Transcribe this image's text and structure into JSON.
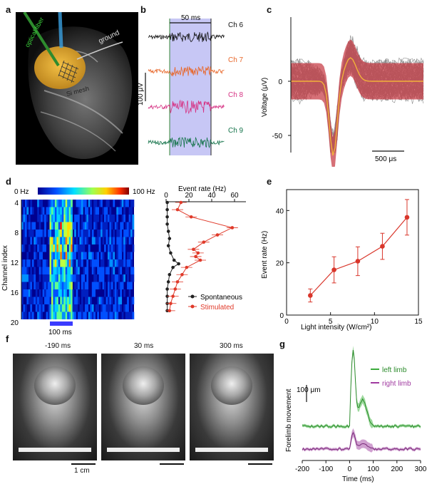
{
  "panels": {
    "a": {
      "letter": "a",
      "labels": [
        "optical fiber",
        "ground",
        "Si mesh"
      ]
    },
    "b": {
      "letter": "b",
      "scalebar_time": "50 ms",
      "scalebar_amp": "100 μV",
      "channels": [
        {
          "name": "Ch 6",
          "color": "#111111"
        },
        {
          "name": "Ch 7",
          "color": "#e8672a"
        },
        {
          "name": "Ch 8",
          "color": "#d63384"
        },
        {
          "name": "Ch 9",
          "color": "#14734a"
        }
      ],
      "stim_color": "#b9b9f2"
    },
    "c": {
      "letter": "c",
      "ylabel": "Voltage (μV)",
      "yticks": [
        "0",
        "-50"
      ],
      "scalebar_time": "500 μs"
    },
    "d": {
      "letter": "d",
      "colorbar_min": "0 Hz",
      "colorbar_max": "100 Hz",
      "ylabel": "Channel index",
      "yticks": [
        "4",
        "8",
        "12",
        "16",
        "20"
      ],
      "stim_bar_label": "100 ms",
      "rate_xlabel": "Event rate (Hz)",
      "rate_xticks": [
        "0",
        "20",
        "40",
        "60"
      ],
      "legend_spont": "Spontaneous",
      "legend_stim": "Stimulated"
    },
    "e": {
      "letter": "e",
      "xlabel": "Light intensity (W/cm²)",
      "ylabel": "Event rate (Hz)",
      "xticks": [
        "0",
        "5",
        "10",
        "15"
      ],
      "yticks": [
        "0",
        "20",
        "40"
      ]
    },
    "f": {
      "letter": "f",
      "times": [
        "-190 ms",
        "30 ms",
        "300 ms"
      ],
      "scalebar": "1 cm"
    },
    "g": {
      "letter": "g",
      "ylabel": "Forelimb movement",
      "scalebar": "100 μm",
      "legend_left": "left limb",
      "legend_right": "right limb",
      "xlabel": "Time (ms)",
      "xticks": [
        "-200",
        "-100",
        "0",
        "100",
        "200",
        "300"
      ]
    }
  },
  "chart_data": [
    {
      "type": "line",
      "panel": "d-rate",
      "xlabel": "Event rate (Hz)",
      "ylabel": "Channel index",
      "xlim": [
        0,
        70
      ],
      "ylim": [
        4,
        20
      ],
      "series": [
        {
          "name": "Spontaneous",
          "x": [
            1,
            1,
            1,
            1,
            2,
            3,
            2,
            4,
            7,
            11,
            6,
            3,
            2,
            1,
            1,
            1,
            1
          ],
          "y": [
            4,
            5,
            6,
            7,
            8,
            9,
            10,
            11,
            12,
            12.5,
            13,
            14,
            15,
            16,
            17,
            18,
            19
          ]
        },
        {
          "name": "Stimulated",
          "x": [
            13,
            10,
            22,
            58,
            45,
            33,
            24,
            28,
            26,
            30,
            18,
            14,
            10,
            8,
            6,
            4,
            3
          ],
          "y": [
            4,
            5,
            6,
            7.5,
            8.5,
            9.5,
            10.5,
            11,
            11.5,
            12,
            13,
            14,
            15,
            16,
            17,
            18,
            19
          ]
        }
      ]
    },
    {
      "type": "line",
      "panel": "e",
      "xlabel": "Light intensity (W/cm²)",
      "ylabel": "Event rate (Hz)",
      "xlim": [
        0,
        15
      ],
      "ylim": [
        0,
        48
      ],
      "x": [
        2.7,
        5.4,
        8.1,
        10.9,
        13.7
      ],
      "values": [
        7.5,
        17.3,
        20.6,
        26.3,
        37.4
      ],
      "error": [
        2.5,
        5.0,
        5.5,
        5.0,
        6.8
      ]
    }
  ]
}
